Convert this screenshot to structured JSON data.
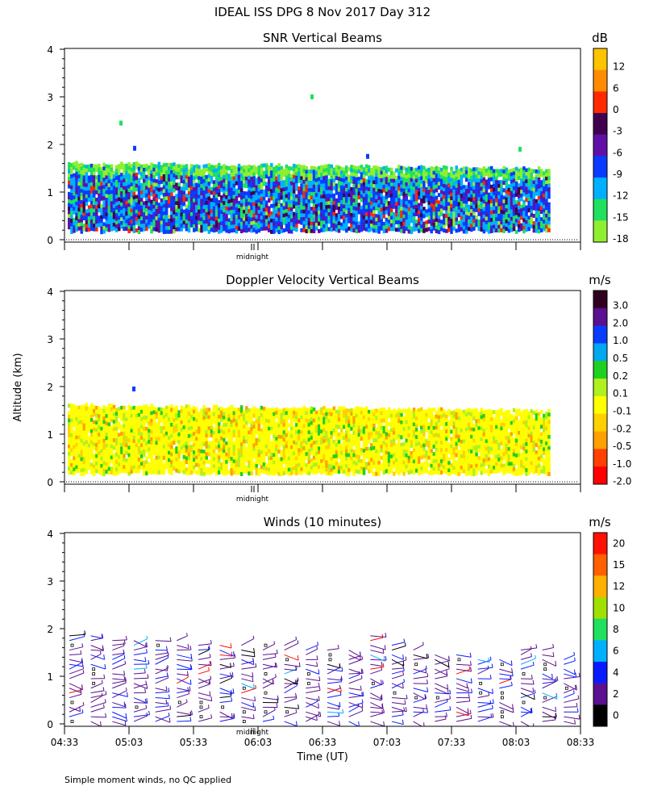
{
  "figure_title": "IDEAL ISS DPG   8 Nov 2017 Day 312",
  "shared_ylabel": "Altitude (km)",
  "shared_xlabel": "Time (UT)",
  "footnote": "Simple moment winds, no QC applied",
  "midnight_label": "midnight",
  "chart_data": [
    {
      "type": "heatmap",
      "title": "SNR Vertical Beams",
      "ylabel": "Altitude (km)",
      "ylim": [
        0,
        4
      ],
      "yticks": [
        "0",
        "1",
        "2",
        "3",
        "4"
      ],
      "xlim": [
        "04:33",
        "08:33"
      ],
      "data_extent": {
        "altitude_km": [
          0.2,
          1.6
        ],
        "time": [
          "04:33",
          "08:18"
        ]
      },
      "colorbar": {
        "unit": "dB",
        "ticks": [
          "12",
          "6",
          "0",
          "-3",
          "-6",
          "-9",
          "-12",
          "-15",
          "-18"
        ],
        "colors": [
          "#ffc400",
          "#ff8c00",
          "#ff2a00",
          "#400050",
          "#6010a8",
          "#0a3cff",
          "#00b0ff",
          "#20e060",
          "#90ee30"
        ]
      }
    },
    {
      "type": "heatmap",
      "title": "Doppler Velocity Vertical Beams",
      "ylabel": "Altitude (km)",
      "ylim": [
        0,
        4
      ],
      "yticks": [
        "0",
        "1",
        "2",
        "3",
        "4"
      ],
      "xlim": [
        "04:33",
        "08:33"
      ],
      "data_extent": {
        "altitude_km": [
          0.2,
          1.6
        ],
        "time": [
          "04:33",
          "08:18"
        ]
      },
      "colorbar": {
        "unit": "m/s",
        "ticks": [
          "3.0",
          "2.0",
          "1.0",
          "0.5",
          "0.2",
          "0.1",
          "-0.1",
          "-0.2",
          "-0.5",
          "-1.0",
          "-2.0"
        ],
        "colors": [
          "#300020",
          "#5a1090",
          "#0a3cff",
          "#00a8f0",
          "#20d020",
          "#b0f020",
          "#ffff00",
          "#ffd000",
          "#ffa000",
          "#ff4000",
          "#ff0000"
        ]
      }
    },
    {
      "type": "scatter",
      "title": "Winds (10 minutes)",
      "ylabel": "Altitude (km)",
      "xlabel": "Time (UT)",
      "ylim": [
        0,
        4
      ],
      "yticks": [
        "0",
        "1",
        "2",
        "3",
        "4"
      ],
      "xlim": [
        "04:33",
        "08:33"
      ],
      "xticks": [
        "04:33",
        "05:03",
        "05:33",
        "06:03",
        "06:33",
        "07:03",
        "07:33",
        "08:03",
        "08:33"
      ],
      "profile_times_min_after_0433": [
        0,
        10,
        20,
        30,
        40,
        50,
        60,
        70,
        80,
        90,
        100,
        110,
        120,
        130,
        140,
        150,
        160,
        170,
        180,
        190,
        200,
        210,
        220,
        230
      ],
      "profile_top_km": [
        1.9,
        1.9,
        1.8,
        1.8,
        1.8,
        1.8,
        1.7,
        1.7,
        1.7,
        1.7,
        1.7,
        1.6,
        1.6,
        1.6,
        1.9,
        1.7,
        1.6,
        1.5,
        1.5,
        1.4,
        1.4,
        1.6,
        1.6,
        1.4
      ],
      "colorbar": {
        "unit": "m/s",
        "ticks": [
          "20",
          "15",
          "12",
          "10",
          "8",
          "6",
          "4",
          "2",
          "0"
        ],
        "colors": [
          "#ff1000",
          "#ff6000",
          "#ffb000",
          "#a0e000",
          "#20e060",
          "#00b0ff",
          "#0a1cff",
          "#5a1090",
          "#000000"
        ]
      }
    }
  ]
}
